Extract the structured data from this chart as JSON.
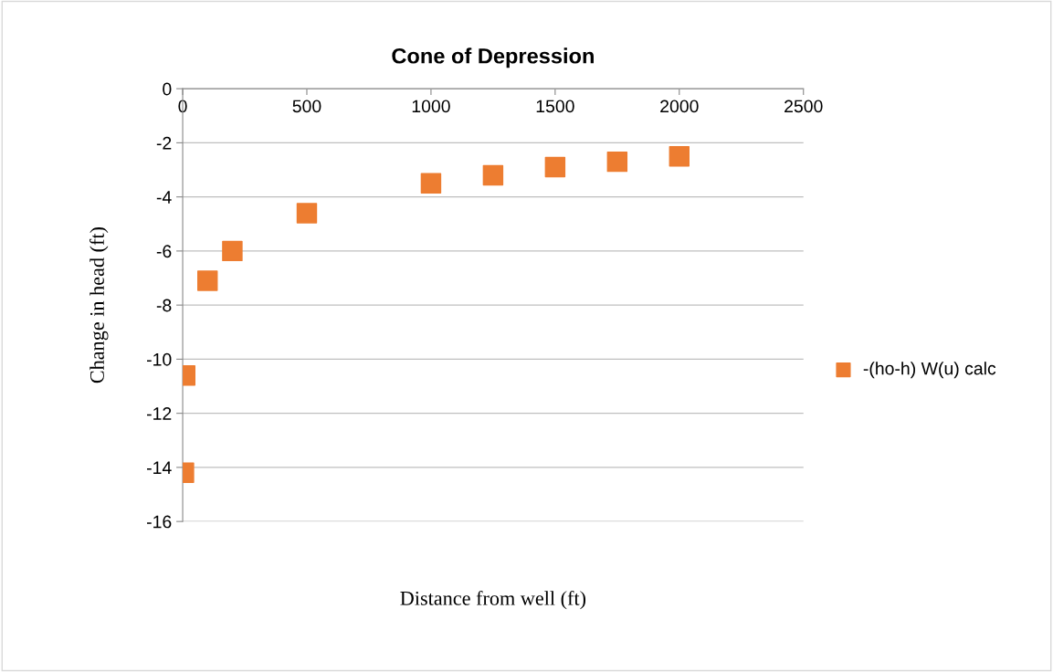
{
  "chart_data": {
    "type": "scatter",
    "title": "Cone of Depression",
    "xlabel": "Distance from well (ft)",
    "ylabel": "Change in head (ft)",
    "x": [
      5,
      10,
      100,
      200,
      500,
      1000,
      1250,
      1500,
      1750,
      2000
    ],
    "series": [
      {
        "name": "-(ho-h) W(u) calc",
        "color": "#ed7d31",
        "values": [
          -14.2,
          -10.6,
          -7.1,
          -6.0,
          -4.6,
          -3.5,
          -3.2,
          -2.9,
          -2.7,
          -2.5
        ]
      }
    ],
    "xlim": [
      0,
      2500
    ],
    "xticks": [
      0,
      500,
      1000,
      1500,
      2000,
      2500
    ],
    "ylim": [
      -16,
      0
    ],
    "yticks": [
      -16,
      -14,
      -12,
      -10,
      -8,
      -6,
      -4,
      -2,
      0
    ],
    "grid": "y",
    "legend": "right",
    "marker": "square"
  }
}
